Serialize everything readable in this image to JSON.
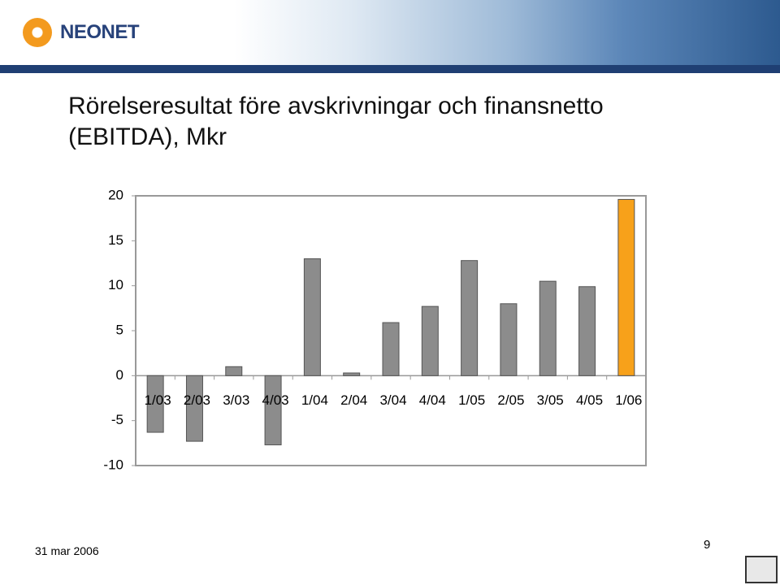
{
  "logo": "NEONET",
  "title": "Rörelseresultat före avskrivningar och finansnetto (EBITDA), Mkr",
  "footer": {
    "date": "31 mar 2006",
    "page_number": 9
  },
  "chart_data": {
    "type": "bar",
    "categories": [
      "1/03",
      "2/03",
      "3/03",
      "4/03",
      "1/04",
      "2/04",
      "3/04",
      "4/04",
      "1/05",
      "2/05",
      "3/05",
      "4/05",
      "1/06"
    ],
    "values": [
      -6.3,
      -7.3,
      1.0,
      -7.7,
      13.0,
      0.3,
      5.9,
      7.7,
      12.8,
      8.0,
      10.5,
      9.9,
      19.6
    ],
    "colors": [
      "#8c8c8c",
      "#8c8c8c",
      "#8c8c8c",
      "#8c8c8c",
      "#8c8c8c",
      "#8c8c8c",
      "#8c8c8c",
      "#8c8c8c",
      "#8c8c8c",
      "#8c8c8c",
      "#8c8c8c",
      "#8c8c8c",
      "#f7a11a"
    ],
    "ylim": [
      -10,
      20
    ],
    "yticks": [
      -10,
      -5,
      0,
      5,
      10,
      15,
      20
    ],
    "grid": false
  }
}
